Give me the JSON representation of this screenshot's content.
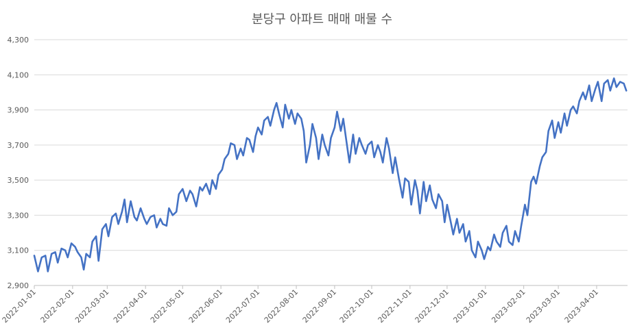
{
  "chart_data": {
    "type": "line",
    "title": "분당구 아파트 매매 매물 수",
    "xlabel": "",
    "ylabel": "",
    "ylim": [
      2900,
      4300
    ],
    "y_ticks": [
      "2,900",
      "3,100",
      "3,300",
      "3,500",
      "3,700",
      "3,900",
      "4,100",
      "4,300"
    ],
    "x_ticks": [
      "2022-01-01",
      "2022-02-01",
      "2022-03-01",
      "2022-04-01",
      "2022-05-01",
      "2022-06-01",
      "2022-07-01",
      "2022-08-01",
      "2022-09-01",
      "2022-10-01",
      "2022-11-01",
      "2022-12-01",
      "2023-01-01",
      "2023-02-01",
      "2023-03-01",
      "2023-04-01"
    ],
    "x_range": [
      "2022-01-01",
      "2023-04-26"
    ],
    "grid": "horizontal",
    "line_color": "#4472C4",
    "series": [
      {
        "points": [
          [
            "2022-01-01",
            3070
          ],
          [
            "2022-01-04",
            2980
          ],
          [
            "2022-01-07",
            3060
          ],
          [
            "2022-01-10",
            3070
          ],
          [
            "2022-01-12",
            2980
          ],
          [
            "2022-01-15",
            3080
          ],
          [
            "2022-01-18",
            3090
          ],
          [
            "2022-01-20",
            3030
          ],
          [
            "2022-01-23",
            3110
          ],
          [
            "2022-01-26",
            3100
          ],
          [
            "2022-01-28",
            3060
          ],
          [
            "2022-01-31",
            3140
          ],
          [
            "2022-02-03",
            3120
          ],
          [
            "2022-02-05",
            3090
          ],
          [
            "2022-02-08",
            3060
          ],
          [
            "2022-02-10",
            2990
          ],
          [
            "2022-02-12",
            3080
          ],
          [
            "2022-02-15",
            3060
          ],
          [
            "2022-02-17",
            3150
          ],
          [
            "2022-02-20",
            3180
          ],
          [
            "2022-02-22",
            3040
          ],
          [
            "2022-02-25",
            3220
          ],
          [
            "2022-02-28",
            3250
          ],
          [
            "2022-03-02",
            3180
          ],
          [
            "2022-03-05",
            3290
          ],
          [
            "2022-03-08",
            3310
          ],
          [
            "2022-03-10",
            3250
          ],
          [
            "2022-03-13",
            3320
          ],
          [
            "2022-03-15",
            3390
          ],
          [
            "2022-03-17",
            3260
          ],
          [
            "2022-03-20",
            3380
          ],
          [
            "2022-03-23",
            3290
          ],
          [
            "2022-03-25",
            3270
          ],
          [
            "2022-03-28",
            3340
          ],
          [
            "2022-03-31",
            3280
          ],
          [
            "2022-04-02",
            3250
          ],
          [
            "2022-04-05",
            3290
          ],
          [
            "2022-04-08",
            3300
          ],
          [
            "2022-04-10",
            3230
          ],
          [
            "2022-04-13",
            3280
          ],
          [
            "2022-04-15",
            3250
          ],
          [
            "2022-04-18",
            3240
          ],
          [
            "2022-04-20",
            3340
          ],
          [
            "2022-04-23",
            3300
          ],
          [
            "2022-04-26",
            3320
          ],
          [
            "2022-04-28",
            3420
          ],
          [
            "2022-05-01",
            3450
          ],
          [
            "2022-05-04",
            3380
          ],
          [
            "2022-05-07",
            3440
          ],
          [
            "2022-05-09",
            3420
          ],
          [
            "2022-05-12",
            3350
          ],
          [
            "2022-05-15",
            3460
          ],
          [
            "2022-05-17",
            3440
          ],
          [
            "2022-05-20",
            3480
          ],
          [
            "2022-05-23",
            3420
          ],
          [
            "2022-05-25",
            3500
          ],
          [
            "2022-05-28",
            3450
          ],
          [
            "2022-05-30",
            3530
          ],
          [
            "2022-06-02",
            3560
          ],
          [
            "2022-06-04",
            3620
          ],
          [
            "2022-06-07",
            3650
          ],
          [
            "2022-06-09",
            3710
          ],
          [
            "2022-06-12",
            3700
          ],
          [
            "2022-06-14",
            3620
          ],
          [
            "2022-06-17",
            3680
          ],
          [
            "2022-06-19",
            3640
          ],
          [
            "2022-06-22",
            3740
          ],
          [
            "2022-06-24",
            3730
          ],
          [
            "2022-06-27",
            3660
          ],
          [
            "2022-06-29",
            3750
          ],
          [
            "2022-07-01",
            3800
          ],
          [
            "2022-07-04",
            3760
          ],
          [
            "2022-07-06",
            3840
          ],
          [
            "2022-07-09",
            3860
          ],
          [
            "2022-07-11",
            3810
          ],
          [
            "2022-07-14",
            3900
          ],
          [
            "2022-07-16",
            3940
          ],
          [
            "2022-07-18",
            3880
          ],
          [
            "2022-07-21",
            3800
          ],
          [
            "2022-07-23",
            3930
          ],
          [
            "2022-07-26",
            3850
          ],
          [
            "2022-07-28",
            3900
          ],
          [
            "2022-07-31",
            3820
          ],
          [
            "2022-08-02",
            3880
          ],
          [
            "2022-08-05",
            3850
          ],
          [
            "2022-08-07",
            3780
          ],
          [
            "2022-08-09",
            3600
          ],
          [
            "2022-08-12",
            3700
          ],
          [
            "2022-08-14",
            3820
          ],
          [
            "2022-08-17",
            3740
          ],
          [
            "2022-08-19",
            3620
          ],
          [
            "2022-08-22",
            3760
          ],
          [
            "2022-08-24",
            3700
          ],
          [
            "2022-08-27",
            3640
          ],
          [
            "2022-08-29",
            3740
          ],
          [
            "2022-09-01",
            3800
          ],
          [
            "2022-09-03",
            3890
          ],
          [
            "2022-09-06",
            3780
          ],
          [
            "2022-09-08",
            3850
          ],
          [
            "2022-09-11",
            3700
          ],
          [
            "2022-09-13",
            3600
          ],
          [
            "2022-09-16",
            3760
          ],
          [
            "2022-09-18",
            3650
          ],
          [
            "2022-09-21",
            3740
          ],
          [
            "2022-09-23",
            3700
          ],
          [
            "2022-09-26",
            3650
          ],
          [
            "2022-09-28",
            3700
          ],
          [
            "2022-10-01",
            3720
          ],
          [
            "2022-10-03",
            3630
          ],
          [
            "2022-10-06",
            3700
          ],
          [
            "2022-10-08",
            3660
          ],
          [
            "2022-10-10",
            3600
          ],
          [
            "2022-10-13",
            3740
          ],
          [
            "2022-10-15",
            3680
          ],
          [
            "2022-10-18",
            3540
          ],
          [
            "2022-10-20",
            3630
          ],
          [
            "2022-10-23",
            3510
          ],
          [
            "2022-10-26",
            3400
          ],
          [
            "2022-10-28",
            3510
          ],
          [
            "2022-10-31",
            3490
          ],
          [
            "2022-11-02",
            3360
          ],
          [
            "2022-11-05",
            3500
          ],
          [
            "2022-11-07",
            3440
          ],
          [
            "2022-11-09",
            3310
          ],
          [
            "2022-11-12",
            3490
          ],
          [
            "2022-11-14",
            3380
          ],
          [
            "2022-11-17",
            3470
          ],
          [
            "2022-11-19",
            3390
          ],
          [
            "2022-11-22",
            3340
          ],
          [
            "2022-11-24",
            3420
          ],
          [
            "2022-11-27",
            3380
          ],
          [
            "2022-11-29",
            3260
          ],
          [
            "2022-12-01",
            3360
          ],
          [
            "2022-12-04",
            3260
          ],
          [
            "2022-12-06",
            3190
          ],
          [
            "2022-12-09",
            3280
          ],
          [
            "2022-12-11",
            3200
          ],
          [
            "2022-12-14",
            3250
          ],
          [
            "2022-12-16",
            3150
          ],
          [
            "2022-12-19",
            3210
          ],
          [
            "2022-12-21",
            3100
          ],
          [
            "2022-12-24",
            3060
          ],
          [
            "2022-12-26",
            3150
          ],
          [
            "2022-12-29",
            3100
          ],
          [
            "2022-12-31",
            3050
          ],
          [
            "2023-01-03",
            3120
          ],
          [
            "2023-01-05",
            3100
          ],
          [
            "2023-01-08",
            3190
          ],
          [
            "2023-01-10",
            3150
          ],
          [
            "2023-01-13",
            3120
          ],
          [
            "2023-01-15",
            3200
          ],
          [
            "2023-01-18",
            3240
          ],
          [
            "2023-01-20",
            3150
          ],
          [
            "2023-01-23",
            3130
          ],
          [
            "2023-01-25",
            3210
          ],
          [
            "2023-01-28",
            3150
          ],
          [
            "2023-01-30",
            3240
          ],
          [
            "2023-02-02",
            3360
          ],
          [
            "2023-02-04",
            3300
          ],
          [
            "2023-02-07",
            3490
          ],
          [
            "2023-02-09",
            3520
          ],
          [
            "2023-02-11",
            3480
          ],
          [
            "2023-02-14",
            3580
          ],
          [
            "2023-02-16",
            3630
          ],
          [
            "2023-02-19",
            3660
          ],
          [
            "2023-02-21",
            3780
          ],
          [
            "2023-02-24",
            3840
          ],
          [
            "2023-02-26",
            3740
          ],
          [
            "2023-03-01",
            3830
          ],
          [
            "2023-03-03",
            3770
          ],
          [
            "2023-03-06",
            3880
          ],
          [
            "2023-03-08",
            3810
          ],
          [
            "2023-03-11",
            3900
          ],
          [
            "2023-03-13",
            3920
          ],
          [
            "2023-03-16",
            3880
          ],
          [
            "2023-03-18",
            3950
          ],
          [
            "2023-03-21",
            4000
          ],
          [
            "2023-03-23",
            3960
          ],
          [
            "2023-03-26",
            4040
          ],
          [
            "2023-03-28",
            3950
          ],
          [
            "2023-03-31",
            4020
          ],
          [
            "2023-04-02",
            4060
          ],
          [
            "2023-04-05",
            3950
          ],
          [
            "2023-04-07",
            4050
          ],
          [
            "2023-04-10",
            4070
          ],
          [
            "2023-04-12",
            4010
          ],
          [
            "2023-04-15",
            4080
          ],
          [
            "2023-04-17",
            4030
          ],
          [
            "2023-04-20",
            4060
          ],
          [
            "2023-04-23",
            4050
          ],
          [
            "2023-04-25",
            4010
          ]
        ]
      }
    ]
  }
}
